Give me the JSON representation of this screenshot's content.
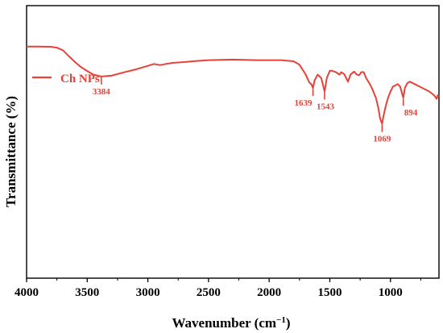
{
  "chart_data": {
    "type": "line",
    "xlabel": "Wavenumber (cm",
    "xlabel_sup": "−1",
    "xlabel_end": ")",
    "ylabel": "Transmittance (%)",
    "xlim": [
      4000,
      600
    ],
    "x_reversed": true,
    "x_ticks": [
      "4000",
      "3500",
      "3000",
      "2500",
      "2000",
      "1500",
      "1000"
    ],
    "x_tick_values": [
      4000,
      3500,
      3000,
      2500,
      2000,
      1500,
      1000
    ],
    "y_ticks_labeled": false,
    "grid": false,
    "legend": "top-left",
    "series": [
      {
        "name": "Ch NPs",
        "color": "#e8413a",
        "points": [
          [
            4000,
            85.0
          ],
          [
            3900,
            85.0
          ],
          [
            3800,
            84.9
          ],
          [
            3750,
            84.6
          ],
          [
            3700,
            83.6
          ],
          [
            3650,
            81.4
          ],
          [
            3600,
            79.3
          ],
          [
            3550,
            77.4
          ],
          [
            3500,
            76.0
          ],
          [
            3450,
            74.7
          ],
          [
            3384,
            74.0
          ],
          [
            3300,
            74.3
          ],
          [
            3200,
            75.5
          ],
          [
            3100,
            76.6
          ],
          [
            3000,
            77.9
          ],
          [
            2950,
            78.6
          ],
          [
            2900,
            78.2
          ],
          [
            2850,
            78.6
          ],
          [
            2800,
            79.0
          ],
          [
            2700,
            79.3
          ],
          [
            2600,
            79.7
          ],
          [
            2500,
            80.0
          ],
          [
            2400,
            80.1
          ],
          [
            2300,
            80.2
          ],
          [
            2200,
            80.1
          ],
          [
            2100,
            80.0
          ],
          [
            2000,
            80.0
          ],
          [
            1900,
            80.0
          ],
          [
            1800,
            79.6
          ],
          [
            1750,
            78.3
          ],
          [
            1700,
            74.8
          ],
          [
            1670,
            71.9
          ],
          [
            1650,
            71.0
          ],
          [
            1639,
            69.8
          ],
          [
            1625,
            72.6
          ],
          [
            1600,
            74.7
          ],
          [
            1570,
            73.4
          ],
          [
            1543,
            68.5
          ],
          [
            1525,
            73.4
          ],
          [
            1500,
            76.1
          ],
          [
            1480,
            76.1
          ],
          [
            1450,
            75.6
          ],
          [
            1420,
            74.7
          ],
          [
            1405,
            75.6
          ],
          [
            1380,
            74.8
          ],
          [
            1350,
            72.1
          ],
          [
            1330,
            74.7
          ],
          [
            1300,
            75.8
          ],
          [
            1280,
            74.8
          ],
          [
            1260,
            74.4
          ],
          [
            1240,
            75.6
          ],
          [
            1220,
            75.6
          ],
          [
            1200,
            73.4
          ],
          [
            1170,
            71.2
          ],
          [
            1150,
            69.4
          ],
          [
            1120,
            66.2
          ],
          [
            1100,
            62.5
          ],
          [
            1085,
            58.5
          ],
          [
            1069,
            56.6
          ],
          [
            1060,
            58.9
          ],
          [
            1040,
            62.9
          ],
          [
            1020,
            66.2
          ],
          [
            1000,
            68.5
          ],
          [
            980,
            70.3
          ],
          [
            960,
            70.7
          ],
          [
            940,
            71.2
          ],
          [
            920,
            70.3
          ],
          [
            900,
            67.1
          ],
          [
            894,
            66.2
          ],
          [
            880,
            69.9
          ],
          [
            860,
            71.6
          ],
          [
            840,
            72.1
          ],
          [
            800,
            71.2
          ],
          [
            760,
            70.3
          ],
          [
            720,
            69.4
          ],
          [
            680,
            68.5
          ],
          [
            640,
            67.1
          ],
          [
            620,
            65.8
          ],
          [
            610,
            67.1
          ],
          [
            600,
            66.6
          ]
        ]
      }
    ],
    "peak_labels": [
      {
        "text": "3384",
        "x": 3384,
        "y": 74.0,
        "place": "below"
      },
      {
        "text": "1639",
        "x": 1639,
        "y": 69.8,
        "place": "below-left"
      },
      {
        "text": "1543",
        "x": 1543,
        "y": 68.5,
        "place": "below-right"
      },
      {
        "text": "1069",
        "x": 1069,
        "y": 56.6,
        "place": "below"
      },
      {
        "text": "894",
        "x": 894,
        "y": 66.2,
        "place": "below-right"
      }
    ]
  }
}
